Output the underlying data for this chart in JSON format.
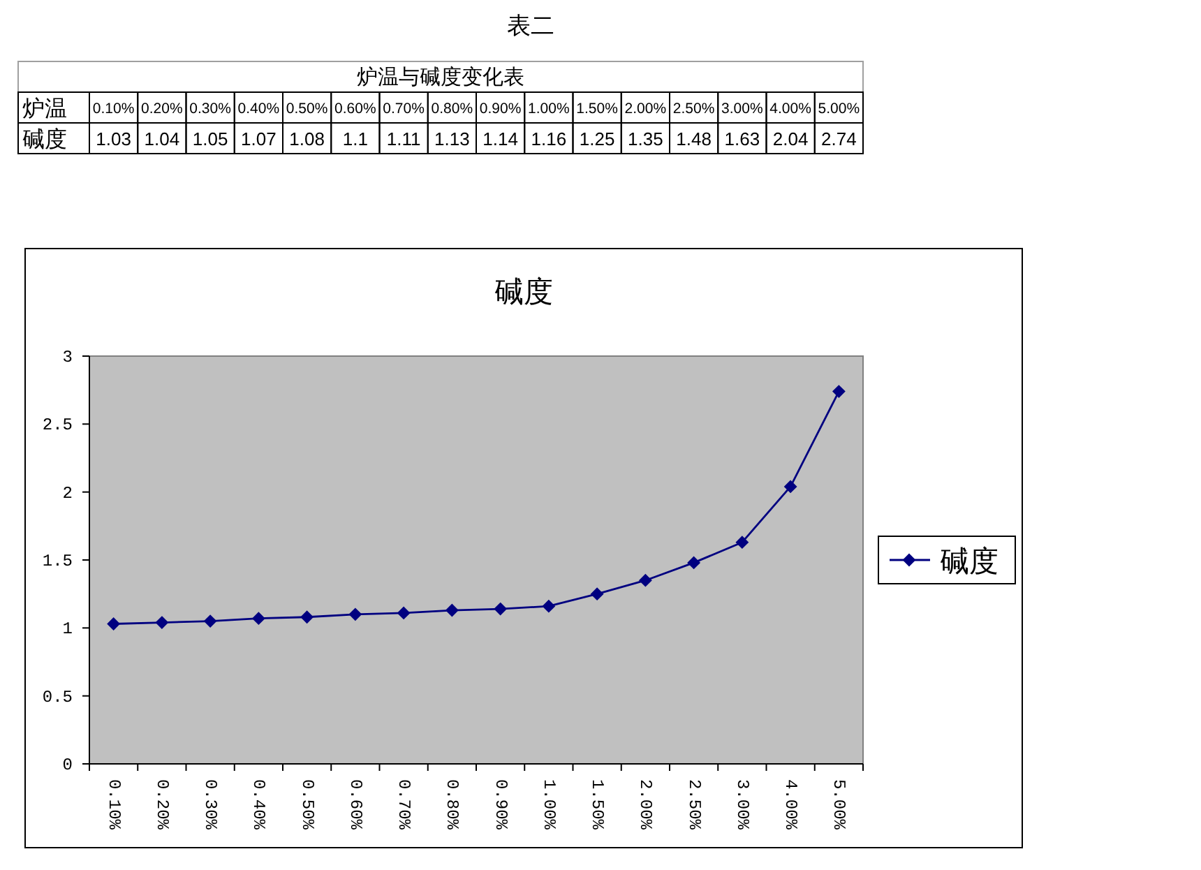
{
  "chart_data": {
    "type": "line",
    "title": "碱度",
    "annotations": [
      "表二",
      "炉温与碱度变化表",
      "炉温"
    ],
    "categories": [
      "0.10%",
      "0.20%",
      "0.30%",
      "0.40%",
      "0.50%",
      "0.60%",
      "0.70%",
      "0.80%",
      "0.90%",
      "1.00%",
      "1.50%",
      "2.00%",
      "2.50%",
      "3.00%",
      "4.00%",
      "5.00%"
    ],
    "series": [
      {
        "name": "碱度",
        "color": "#000080",
        "values": [
          1.03,
          1.04,
          1.05,
          1.07,
          1.08,
          1.1,
          1.11,
          1.13,
          1.14,
          1.16,
          1.25,
          1.35,
          1.48,
          1.63,
          2.04,
          2.74
        ],
        "value_labels": [
          "1.03",
          "1.04",
          "1.05",
          "1.07",
          "1.08",
          "1.1",
          "1.11",
          "1.13",
          "1.14",
          "1.16",
          "1.25",
          "1.35",
          "1.48",
          "1.63",
          "2.04",
          "2.74"
        ]
      }
    ],
    "ylim": [
      0,
      3
    ],
    "yticks": [
      0,
      0.5,
      1,
      1.5,
      2,
      2.5,
      3
    ],
    "grid": false,
    "legend": "right",
    "marker": "diamond",
    "line_style": "solid"
  }
}
